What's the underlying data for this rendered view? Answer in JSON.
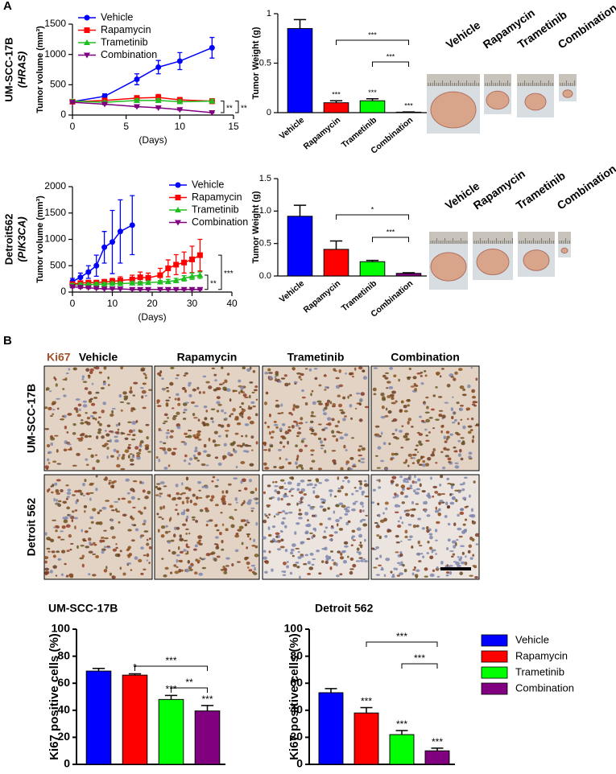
{
  "panel_labels": [
    "A",
    "B"
  ],
  "chart_data": [
    {
      "type": "line",
      "row_label": [
        "UM-SCC-17B",
        "(HRAS)"
      ],
      "ylabel": "Tumor volume (mm³)",
      "xlabel": "(Days)",
      "x": [
        0,
        3,
        6,
        8,
        10,
        13
      ],
      "xlim": [
        0,
        15
      ],
      "xticks": [
        0,
        5,
        10,
        15
      ],
      "ylim": [
        0,
        1500
      ],
      "yticks": [
        0,
        500,
        1000,
        1500
      ],
      "series": [
        {
          "name": "Vehicle",
          "color": "#0000ff",
          "marker": "circle",
          "values": [
            220,
            310,
            590,
            790,
            890,
            1110
          ],
          "errors": [
            20,
            40,
            90,
            110,
            140,
            170
          ]
        },
        {
          "name": "Rapamycin",
          "color": "#ff0000",
          "marker": "square",
          "values": [
            220,
            240,
            280,
            290,
            250,
            230
          ],
          "errors": [
            20,
            30,
            40,
            50,
            40,
            40
          ]
        },
        {
          "name": "Trametinib",
          "color": "#1fbf1f",
          "marker": "triangle",
          "values": [
            230,
            210,
            240,
            240,
            220,
            230
          ],
          "errors": [
            20,
            20,
            30,
            30,
            30,
            30
          ]
        },
        {
          "name": "Combination",
          "color": "#800080",
          "marker": "triangle-down",
          "values": [
            210,
            180,
            140,
            120,
            90,
            40
          ],
          "errors": [
            10,
            10,
            10,
            10,
            10,
            5
          ]
        }
      ],
      "annotations": [
        {
          "label": "**",
          "from": "Trametinib",
          "to": "Combination"
        },
        {
          "label": "**",
          "from": "Rapamycin",
          "to": "Combination"
        }
      ]
    },
    {
      "type": "bar",
      "ylabel": "Tumor Weight (g)",
      "categories": [
        "Vehicle",
        "Rapamycin",
        "Trametinib",
        "Combination"
      ],
      "colors": [
        "#0000ff",
        "#ff0000",
        "#00ff00",
        "#800080"
      ],
      "values": [
        0.85,
        0.1,
        0.12,
        0.005
      ],
      "errors": [
        0.09,
        0.02,
        0.02,
        0.002
      ],
      "star_labels": [
        null,
        "***",
        "***",
        "***"
      ],
      "ylim": [
        0,
        1
      ],
      "yticks": [
        0,
        0.5,
        1
      ],
      "show_category_labels": true,
      "brackets": [
        {
          "label": "***",
          "from": "Rapamycin",
          "to": "Combination"
        },
        {
          "label": "***",
          "from": "Trametinib",
          "to": "Combination"
        }
      ]
    },
    {
      "type": "line",
      "row_label": [
        "Detroit562",
        "(PIK3CA)"
      ],
      "ylabel": "Tumor volume (mm³)",
      "xlabel": "(Days)",
      "x": [
        0,
        2,
        4,
        6,
        8,
        10,
        12,
        15,
        17,
        19,
        22,
        24,
        26,
        28,
        30,
        32
      ],
      "xlim": [
        0,
        40
      ],
      "xticks": [
        0,
        10,
        20,
        30,
        40
      ],
      "ylim": [
        0,
        2000
      ],
      "yticks": [
        0,
        500,
        1000,
        1500,
        2000
      ],
      "series": [
        {
          "name": "Vehicle",
          "color": "#0000ff",
          "marker": "circle",
          "values": [
            200,
            280,
            380,
            500,
            850,
            950,
            1150,
            1270,
            null,
            null,
            null,
            null,
            null,
            null,
            null,
            null
          ],
          "errors": [
            60,
            80,
            120,
            200,
            300,
            600,
            600,
            560,
            null,
            null,
            null,
            null,
            null,
            null,
            null,
            null
          ]
        },
        {
          "name": "Rapamycin",
          "color": "#ff0000",
          "marker": "square",
          "values": [
            150,
            170,
            180,
            180,
            190,
            200,
            220,
            240,
            280,
            270,
            320,
            450,
            520,
            560,
            620,
            700
          ],
          "errors": [
            30,
            40,
            40,
            40,
            50,
            60,
            70,
            80,
            100,
            90,
            130,
            160,
            190,
            200,
            250,
            300
          ]
        },
        {
          "name": "Trametinib",
          "color": "#1fbf1f",
          "marker": "triangle",
          "values": [
            130,
            140,
            140,
            150,
            150,
            160,
            160,
            170,
            170,
            180,
            190,
            200,
            220,
            260,
            300,
            320
          ],
          "errors": [
            30,
            30,
            30,
            30,
            30,
            30,
            30,
            30,
            30,
            30,
            30,
            40,
            40,
            50,
            60,
            60
          ]
        },
        {
          "name": "Combination",
          "color": "#800080",
          "marker": "triangle-down",
          "values": [
            100,
            90,
            80,
            70,
            60,
            60,
            60,
            50,
            50,
            50,
            50,
            50,
            50,
            50,
            50,
            50
          ],
          "errors": [
            20,
            20,
            15,
            15,
            10,
            10,
            10,
            10,
            10,
            10,
            10,
            10,
            10,
            10,
            10,
            10
          ]
        }
      ],
      "annotations": [
        {
          "label": "***",
          "from": "Rapamycin",
          "to": "Combination"
        },
        {
          "label": "**",
          "from": "Trametinib",
          "to": "Combination"
        }
      ]
    },
    {
      "type": "bar",
      "ylabel": "Tumor Weight (g)",
      "categories": [
        "Vehicle",
        "Rapamycin",
        "Trametinib",
        "Combination"
      ],
      "colors": [
        "#0000ff",
        "#ff0000",
        "#00ff00",
        "#800080"
      ],
      "values": [
        0.92,
        0.41,
        0.22,
        0.04
      ],
      "errors": [
        0.17,
        0.13,
        0.02,
        0.01
      ],
      "star_labels": [
        null,
        null,
        null,
        null
      ],
      "ylim": [
        0,
        1.5
      ],
      "yticks": [
        {
          "value": 0,
          "label": "0.0"
        },
        0.5,
        {
          "value": 1,
          "label": "1.0"
        },
        1.5
      ],
      "show_category_labels": true,
      "brackets": [
        {
          "label": "*",
          "from": "Rapamycin",
          "to": "Combination"
        },
        {
          "label": "***",
          "from": "Trametinib",
          "to": "Combination"
        }
      ]
    },
    {
      "type": "bar",
      "title": "UM-SCC-17B",
      "ylabel": "Ki67 positive cells (%)",
      "categories": [
        "Vehicle",
        "Rapamycin",
        "Trametinib",
        "Combination"
      ],
      "colors": [
        "#0000ff",
        "#ff0000",
        "#00ff00",
        "#800080"
      ],
      "values": [
        69,
        66,
        48,
        39.5
      ],
      "errors": [
        2,
        1,
        3,
        4
      ],
      "star_labels": [
        null,
        "*",
        "***",
        "***"
      ],
      "ylim": [
        0,
        100
      ],
      "yticks": [
        0,
        20,
        40,
        60,
        80,
        100
      ],
      "show_category_labels": false,
      "brackets": [
        {
          "label": "***",
          "from": "Rapamycin",
          "to": "Combination"
        },
        {
          "label": "**",
          "from": "Trametinib",
          "to": "Combination"
        }
      ]
    },
    {
      "type": "bar",
      "title": "Detroit 562",
      "ylabel": "Ki67 positive cells (%)",
      "categories": [
        "Vehicle",
        "Rapamycin",
        "Trametinib",
        "Combination"
      ],
      "colors": [
        "#0000ff",
        "#ff0000",
        "#00ff00",
        "#800080"
      ],
      "values": [
        53,
        38,
        22,
        10
      ],
      "errors": [
        3,
        4,
        3,
        2
      ],
      "star_labels": [
        null,
        "***",
        "***",
        "***"
      ],
      "ylim": [
        0,
        100
      ],
      "yticks": [
        0,
        20,
        40,
        60,
        80,
        100
      ],
      "show_category_labels": false,
      "legend": "right",
      "brackets": [
        {
          "label": "***",
          "from": "Rapamycin",
          "to": "Combination"
        },
        {
          "label": "***",
          "from": "Trametinib",
          "to": "Combination"
        }
      ]
    }
  ],
  "tumor_photos": [
    [
      "Vehicle",
      "Rapamycin",
      "Trametinib",
      "Combination"
    ],
    [
      "Vehicle",
      "Rapamycin",
      "Trametinib",
      "Combination"
    ]
  ],
  "ihc": {
    "marker": "Ki67",
    "columns": [
      "Vehicle",
      "Rapamycin",
      "Trametinib",
      "Combination"
    ],
    "rows": [
      "UM-SCC-17B",
      "Detroit 562"
    ]
  }
}
